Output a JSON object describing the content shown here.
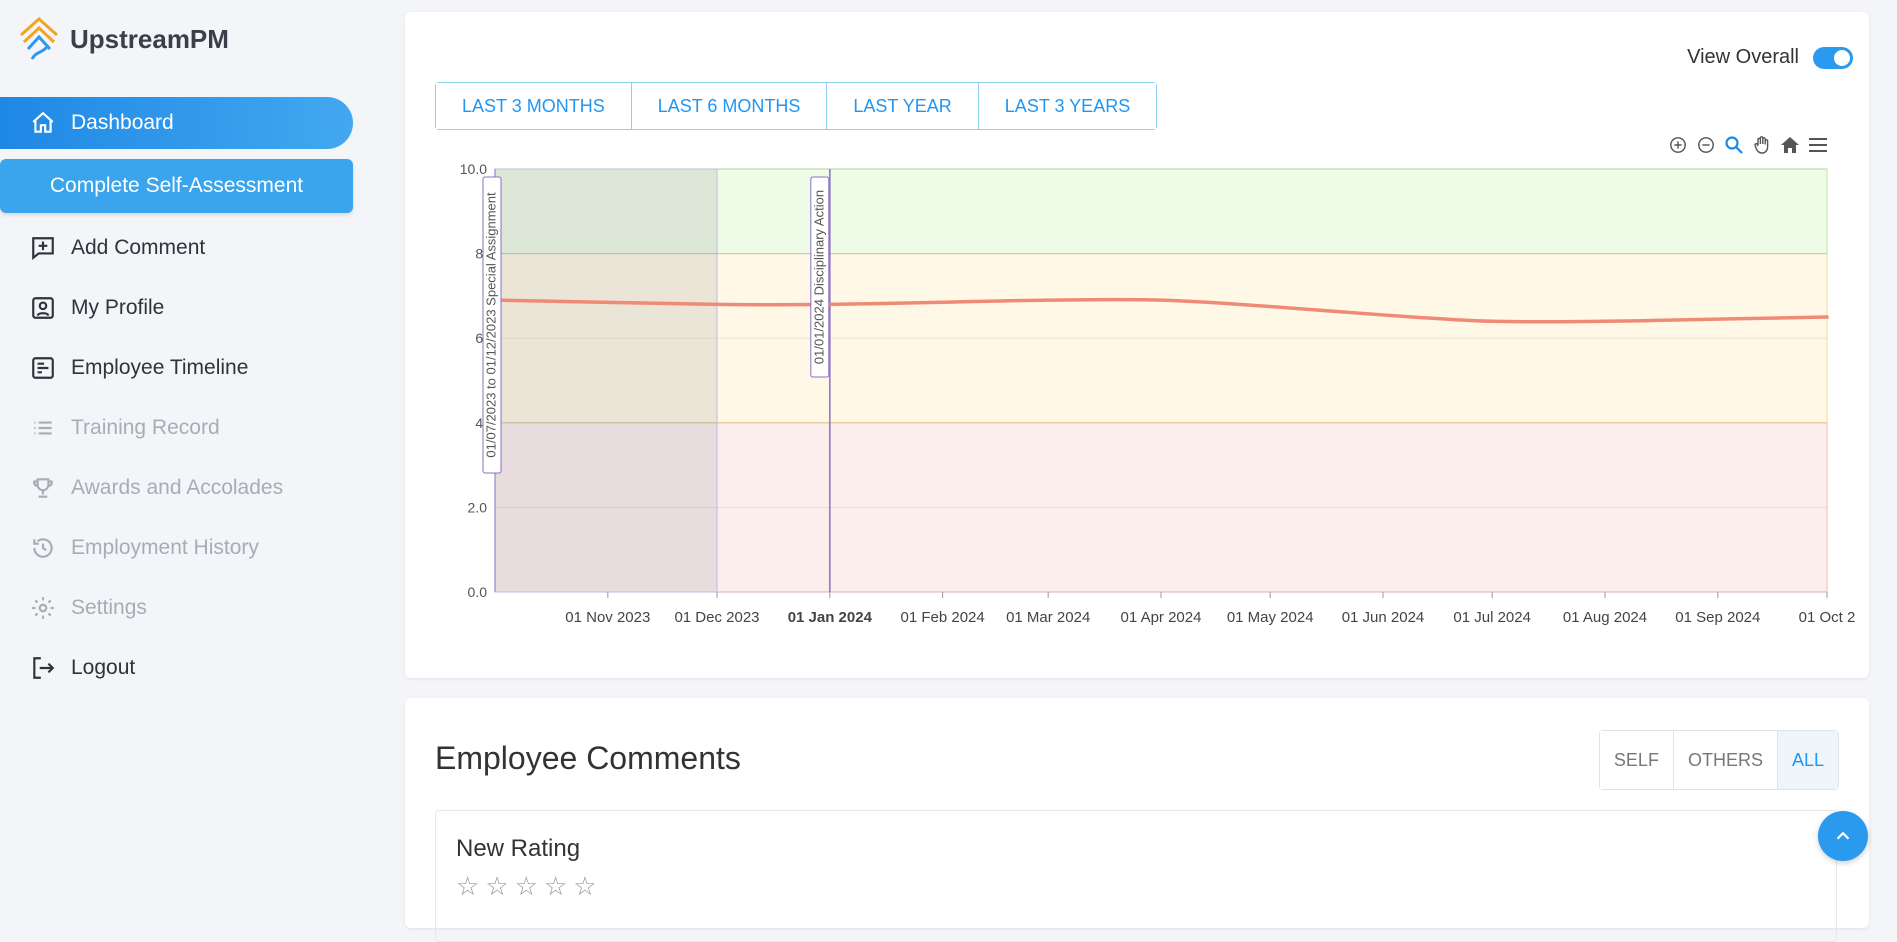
{
  "brand": {
    "name": "UpstreamPM"
  },
  "sidebar": {
    "items": [
      {
        "label": "Dashboard",
        "icon": "home-icon",
        "state": "active"
      },
      {
        "label": "Add Comment",
        "icon": "comment-add-icon",
        "state": "normal"
      },
      {
        "label": "My Profile",
        "icon": "profile-icon",
        "state": "normal"
      },
      {
        "label": "Employee Timeline",
        "icon": "timeline-icon",
        "state": "normal"
      },
      {
        "label": "Training Record",
        "icon": "list-icon",
        "state": "disabled"
      },
      {
        "label": "Awards and Accolades",
        "icon": "trophy-icon",
        "state": "disabled"
      },
      {
        "label": "Employment History",
        "icon": "history-icon",
        "state": "disabled"
      },
      {
        "label": "Settings",
        "icon": "gear-icon",
        "state": "disabled"
      },
      {
        "label": "Logout",
        "icon": "logout-icon",
        "state": "normal"
      }
    ],
    "assess_button": "Complete Self-Assessment"
  },
  "chart_card": {
    "view_overall_label": "View Overall",
    "view_overall_on": true,
    "ranges": [
      "LAST 3 MONTHS",
      "LAST 6 MONTHS",
      "LAST YEAR",
      "LAST 3 YEARS"
    ],
    "toolbar": [
      "zoom-in-icon",
      "zoom-out-icon",
      "zoom-select-icon",
      "pan-hand-icon",
      "reset-home-icon",
      "menu-icon"
    ]
  },
  "chart_data": {
    "type": "line",
    "title": "",
    "xlabel": "",
    "ylabel": "",
    "ylim": [
      0,
      10
    ],
    "yticks": [
      "0.0",
      "2.0",
      "4.",
      "6.",
      "8.",
      "10.0"
    ],
    "xlim": [
      "2023-10-01",
      "2024-10-01"
    ],
    "xticks": [
      {
        "date": "2023-11-01",
        "label": "01 Nov 2023",
        "bold": false
      },
      {
        "date": "2023-12-01",
        "label": "01 Dec 2023",
        "bold": false
      },
      {
        "date": "2024-01-01",
        "label": "01 Jan 2024",
        "bold": true
      },
      {
        "date": "2024-02-01",
        "label": "01 Feb 2024",
        "bold": false
      },
      {
        "date": "2024-03-01",
        "label": "01 Mar 2024",
        "bold": false
      },
      {
        "date": "2024-04-01",
        "label": "01 Apr 2024",
        "bold": false
      },
      {
        "date": "2024-05-01",
        "label": "01 May 2024",
        "bold": false
      },
      {
        "date": "2024-06-01",
        "label": "01 Jun 2024",
        "bold": false
      },
      {
        "date": "2024-07-01",
        "label": "01 Jul 2024",
        "bold": false
      },
      {
        "date": "2024-08-01",
        "label": "01 Aug 2024",
        "bold": false
      },
      {
        "date": "2024-09-01",
        "label": "01 Sep 2024",
        "bold": false
      },
      {
        "date": "2024-10-01",
        "label": "01 Oct 2",
        "bold": false
      }
    ],
    "bands": [
      {
        "from": 0,
        "to": 4,
        "color": "#fdeeee"
      },
      {
        "from": 4,
        "to": 8,
        "color": "#fff8e6"
      },
      {
        "from": 8,
        "to": 10,
        "color": "#eefbe7"
      }
    ],
    "annotations": [
      {
        "type": "range",
        "from": "2023-10-01",
        "to": "2023-12-01",
        "label": "01/07/2023 to 01/12/2023 Special Assignment"
      },
      {
        "type": "line",
        "at": "2024-01-01",
        "label": "01/01/2024 Disciplinary Action"
      }
    ],
    "series": [
      {
        "color": "#f08a76",
        "x": [
          "2023-10-01",
          "2023-12-01",
          "2024-01-01",
          "2024-02-01",
          "2024-03-01",
          "2024-04-01",
          "2024-05-01",
          "2024-06-01",
          "2024-07-01",
          "2024-08-01",
          "2024-09-01",
          "2024-10-01"
        ],
        "y": [
          6.9,
          6.8,
          6.8,
          6.85,
          6.9,
          6.9,
          6.75,
          6.55,
          6.4,
          6.4,
          6.45,
          6.5
        ]
      }
    ]
  },
  "comments": {
    "title": "Employee Comments",
    "filters": [
      "SELF",
      "OTHERS",
      "ALL"
    ],
    "active_filter": "ALL",
    "new_rating_title": "New Rating",
    "stars": 5,
    "rating": 0
  }
}
